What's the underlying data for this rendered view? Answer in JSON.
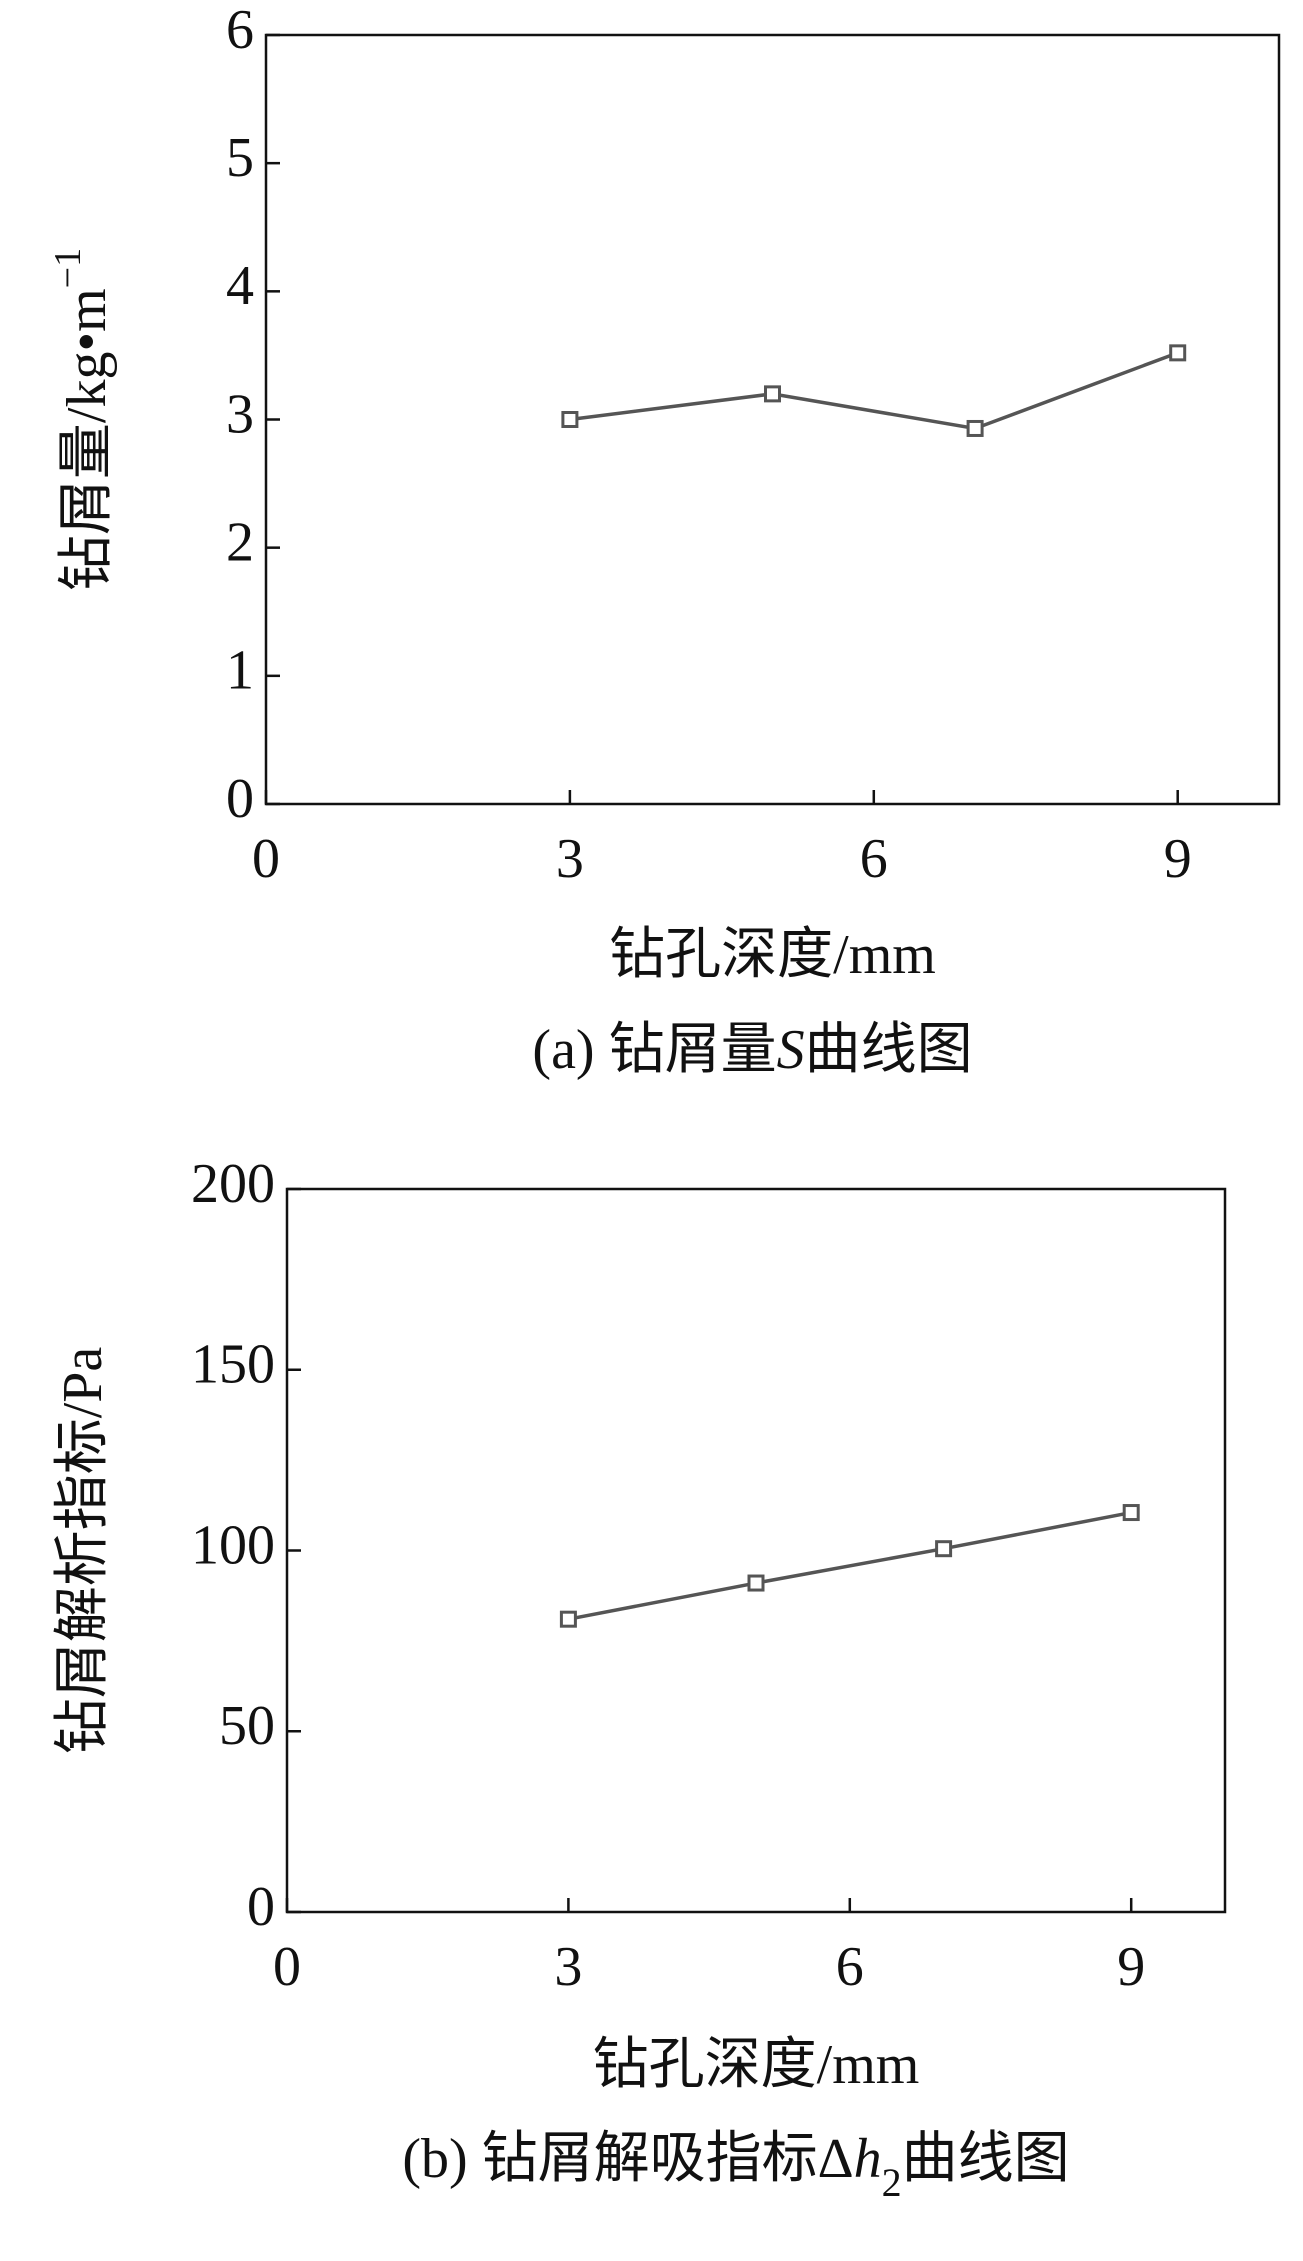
{
  "chart_data": [
    {
      "type": "line",
      "x_label": "钻孔深度/mm",
      "y_label": "钻屑量/kg•m",
      "y_label_sup": "−1",
      "caption": "(a) 钻屑量",
      "caption_var": "S",
      "caption_end": "曲线图",
      "x": [
        3,
        5,
        7,
        9
      ],
      "values": [
        3.0,
        3.2,
        2.93,
        3.52
      ],
      "color": "#555555",
      "marker": "square",
      "xlim": [
        0,
        10
      ],
      "ylim": [
        0,
        6
      ],
      "xticks": [
        0,
        3,
        6,
        9
      ],
      "yticks": [
        0,
        1,
        2,
        3,
        4,
        5,
        6
      ]
    },
    {
      "type": "line",
      "x_label": "钻孔深度/mm",
      "y_label": "钻屑解析指标/Pa",
      "caption": "(b) 钻屑解吸指标",
      "caption_symbol": "Δ",
      "caption_var": "h",
      "caption_sub": "2",
      "caption_end": "曲线图",
      "x": [
        3,
        5,
        7,
        9
      ],
      "values": [
        81,
        91,
        100.5,
        110.5
      ],
      "color": "#555555",
      "marker": "square",
      "xlim": [
        0,
        10
      ],
      "ylim": [
        0,
        200
      ],
      "xticks": [
        0,
        3,
        6,
        9
      ],
      "yticks": [
        0,
        50,
        100,
        150,
        200
      ]
    }
  ]
}
